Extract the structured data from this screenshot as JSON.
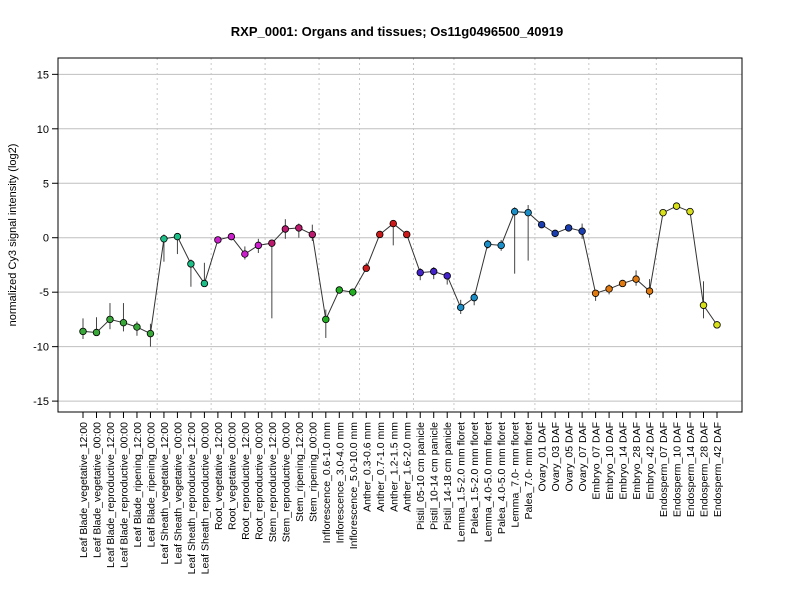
{
  "chart_data": {
    "type": "line",
    "title": "RXP_0001: Organs and tissues; Os11g0496500_40919",
    "ylabel": "normalized Cy3 signal intensity (log2)",
    "xlabel": "",
    "ylim": [
      -16,
      16.5
    ],
    "yticks": [
      -15,
      -10,
      -5,
      0,
      5,
      10,
      15
    ],
    "grid": true,
    "categories": [
      "Leaf Blade_vegetative_12:00",
      "Leaf Blade_vegetative_00:00",
      "Leaf Blade_reproductive_12:00",
      "Leaf Blade_reproductive_00:00",
      "Leaf Blade_ripening_12:00",
      "Leaf Blade_ripening_00:00",
      "Leaf Sheath_vegetative_12:00",
      "Leaf Sheath_vegetative_00:00",
      "Leaf Sheath_reproductive_12:00",
      "Leaf Sheath_reproductive_00:00",
      "Root_vegetative_12:00",
      "Root_vegetative_00:00",
      "Root_reproductive_12:00",
      "Root_reproductive_00:00",
      "Stem_reproductive_12:00",
      "Stem_reproductive_00:00",
      "Stem_ripening_12:00",
      "Stem_ripening_00:00",
      "Inflorescence_0.6-1.0 mm",
      "Inflorescence_3.0-4.0 mm",
      "Inflorescence_5.0-10.0 mm",
      "Anther_0.3-0.6 mm",
      "Anther_0.7-1.0 mm",
      "Anther_1.2-1.5 mm",
      "Anther_1.6-2.0 mm",
      "Pistil_05-10 cm panicle",
      "Pistil_10-14 cm panicle",
      "Pistil_14-18 cm panicle",
      "Lemma_1.5-2.0 mm floret",
      "Palea_1.5-2.0 mm floret",
      "Lemma_4.0-5.0 mm floret",
      "Palea_4.0-5.0 mm floret",
      "Lemma_7.0- mm floret",
      "Palea_7.0- mm floret",
      "Ovary_01 DAF",
      "Ovary_03 DAF",
      "Ovary_05 DAF",
      "Ovary_07 DAF",
      "Embryo_07 DAF",
      "Embryo_10 DAF",
      "Embryo_14 DAF",
      "Embryo_28 DAF",
      "Embryo_42 DAF",
      "Endosperm_07 DAF",
      "Endosperm_10 DAF",
      "Endosperm_14 DAF",
      "Endosperm_28 DAF",
      "Endosperm_42 DAF"
    ],
    "values": [
      -8.6,
      -8.7,
      -7.5,
      -7.8,
      -8.2,
      -8.8,
      -0.1,
      0.1,
      -2.4,
      -4.2,
      -0.2,
      0.1,
      -1.5,
      -0.7,
      -0.5,
      0.8,
      0.9,
      0.3,
      -7.5,
      -4.8,
      -5.0,
      -2.8,
      0.3,
      1.3,
      0.3,
      -3.2,
      -3.1,
      -3.5,
      -6.4,
      -5.5,
      -0.6,
      -0.7,
      2.4,
      2.3,
      1.2,
      0.4,
      0.9,
      0.6,
      -5.1,
      -4.7,
      -4.2,
      -3.8,
      -4.9,
      2.3,
      2.9,
      2.4,
      -6.2,
      -8.0
    ],
    "error_low": [
      -9.3,
      -9.0,
      -8.4,
      -8.6,
      -9.0,
      -10.0,
      -2.2,
      -1.5,
      -4.5,
      -4.3,
      -0.3,
      -0.1,
      -2.0,
      -1.4,
      -7.4,
      -0.1,
      0.0,
      -0.3,
      -9.2,
      -4.9,
      -5.4,
      -3.1,
      0.1,
      -0.7,
      0.1,
      -3.9,
      -3.8,
      -4.3,
      -7.0,
      -6.2,
      -1.0,
      -1.2,
      -3.3,
      -2.1,
      1.0,
      0.2,
      0.6,
      -0.1,
      -5.8,
      -5.2,
      -4.5,
      -4.4,
      -5.5,
      2.2,
      2.6,
      2.2,
      -7.4,
      -8.1
    ],
    "error_high": [
      -7.4,
      -7.3,
      -6.0,
      -6.0,
      -7.7,
      -7.9,
      0.3,
      0.4,
      -2.0,
      -2.3,
      -0.1,
      0.3,
      -0.8,
      -0.1,
      -0.2,
      1.7,
      1.3,
      1.2,
      -6.6,
      -4.7,
      -4.7,
      -2.3,
      0.5,
      1.4,
      0.5,
      -2.8,
      -2.7,
      -3.2,
      -5.7,
      -5.0,
      -0.2,
      -0.2,
      2.8,
      3.0,
      1.4,
      0.6,
      1.1,
      1.3,
      -4.8,
      -4.3,
      -4.0,
      -3.0,
      -3.8,
      2.5,
      3.1,
      2.6,
      -4.0,
      -7.8
    ],
    "colors": [
      "#38a838",
      "#38a838",
      "#38a838",
      "#38a838",
      "#38a838",
      "#38a838",
      "#1dbf88",
      "#1dbf88",
      "#1dbf88",
      "#1dbf88",
      "#cc1fcc",
      "#cc1fcc",
      "#cc1fcc",
      "#cc1fcc",
      "#bb1a6e",
      "#bb1a6e",
      "#bb1a6e",
      "#bb1a6e",
      "#22b022",
      "#22b022",
      "#22b022",
      "#cc1a1a",
      "#cc1a1a",
      "#cc1a1a",
      "#cc1a1a",
      "#4422cc",
      "#4422cc",
      "#4422cc",
      "#1a8fc8",
      "#1a8fc8",
      "#1a8fc8",
      "#1a8fc8",
      "#1a8fc8",
      "#1a8fc8",
      "#1a3db0",
      "#1a3db0",
      "#1a3db0",
      "#1a3db0",
      "#e07a10",
      "#e07a10",
      "#e07a10",
      "#e07a10",
      "#e07a10",
      "#d8e01a",
      "#d8e01a",
      "#d8e01a",
      "#d8e01a",
      "#d8e01a"
    ],
    "group_boundaries_after_index": [
      5,
      9,
      13,
      17,
      20,
      24,
      27,
      33,
      37,
      42
    ]
  }
}
